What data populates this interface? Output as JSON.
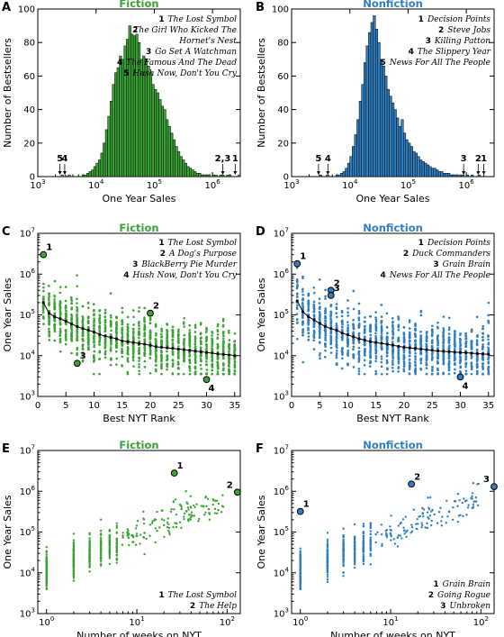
{
  "colors": {
    "fiction": "#3ba336",
    "nonfiction": "#2f7fc1"
  },
  "chart_data": [
    {
      "panel": "A",
      "type": "bar",
      "title": "Fiction",
      "xlabel": "One Year Sales",
      "ylabel": "Number of Bestsellers",
      "xscale": "log",
      "xlim": [
        1000,
        3000000
      ],
      "ylim": [
        0,
        100
      ],
      "xticks": [
        "10^3",
        "10^4",
        "10^5",
        "10^6"
      ],
      "yticks": [
        "0",
        "20",
        "40",
        "60",
        "80",
        "100"
      ],
      "bin_start_log10": 3.4,
      "bin_width_log10": 0.04,
      "values": [
        1,
        0,
        0,
        1,
        0,
        0,
        0,
        0,
        0,
        1,
        1,
        2,
        3,
        4,
        6,
        8,
        10,
        14,
        20,
        28,
        36,
        45,
        55,
        62,
        65,
        72,
        70,
        78,
        82,
        90,
        85,
        84,
        85,
        80,
        70,
        72,
        70,
        66,
        62,
        55,
        52,
        50,
        46,
        42,
        40,
        34,
        30,
        26,
        22,
        18,
        15,
        12,
        10,
        8,
        6,
        5,
        4,
        3,
        2,
        2,
        1,
        1,
        1,
        1,
        0,
        1,
        1,
        0,
        1,
        1,
        0,
        1,
        1,
        0,
        0,
        0,
        1,
        0,
        0,
        0,
        0,
        0
      ],
      "annotations": [
        {
          "label": "5",
          "x": 2400
        },
        {
          "label": "4",
          "x": 2900
        },
        {
          "label": "2,3",
          "x": 1500000
        },
        {
          "label": "1",
          "x": 2450000
        }
      ],
      "legend": [
        {
          "num": "1",
          "text": "The Lost Symbol"
        },
        {
          "num": "2",
          "text": "The Girl Who Kicked The Hornet's Nest"
        },
        {
          "num": "3",
          "text": "Go Set A Watchman"
        },
        {
          "num": "4",
          "text": "The Famous And The Dead"
        },
        {
          "num": "5",
          "text": "Hush Now, Don't You Cry"
        }
      ]
    },
    {
      "panel": "B",
      "type": "bar",
      "title": "Nonfiction",
      "xlabel": "One Year Sales",
      "ylabel": "Number of Bestsellers",
      "xscale": "log",
      "xlim": [
        1000,
        3000000
      ],
      "ylim": [
        0,
        100
      ],
      "xticks": [
        "10^3",
        "10^4",
        "10^5",
        "10^6"
      ],
      "yticks": [
        "0",
        "20",
        "40",
        "60",
        "80",
        "100"
      ],
      "bin_start_log10": 3.48,
      "bin_width_log10": 0.04,
      "values": [
        1,
        0,
        0,
        1,
        0,
        0,
        0,
        1,
        1,
        2,
        3,
        5,
        8,
        12,
        18,
        25,
        34,
        45,
        55,
        68,
        78,
        86,
        92,
        96,
        88,
        80,
        70,
        66,
        60,
        52,
        48,
        44,
        40,
        35,
        30,
        34,
        26,
        22,
        20,
        18,
        15,
        14,
        12,
        10,
        9,
        8,
        7,
        6,
        5,
        5,
        4,
        3,
        3,
        2,
        2,
        2,
        1,
        1,
        1,
        1,
        0,
        1,
        0,
        1,
        0,
        1,
        0,
        0,
        1,
        0,
        0,
        0,
        0
      ],
      "annotations": [
        {
          "label": "5",
          "x": 2900
        },
        {
          "label": "4",
          "x": 4200
        },
        {
          "label": "3",
          "x": 900000
        },
        {
          "label": "2",
          "x": 1600000
        },
        {
          "label": "1",
          "x": 2000000
        }
      ],
      "legend": [
        {
          "num": "1",
          "text": "Decision Points"
        },
        {
          "num": "2",
          "text": "Steve Jobs"
        },
        {
          "num": "3",
          "text": "Killing Patton"
        },
        {
          "num": "4",
          "text": "The Slippery Year"
        },
        {
          "num": "5",
          "text": "News For All The People"
        }
      ]
    },
    {
      "panel": "C",
      "type": "scatter",
      "title": "Fiction",
      "xlabel": "Best NYT Rank",
      "ylabel": "One Year Sales",
      "xlim": [
        0,
        36
      ],
      "ylim": [
        1000,
        10000000
      ],
      "yscale": "log",
      "xticks": [
        "0",
        "5",
        "10",
        "15",
        "20",
        "25",
        "30",
        "35"
      ],
      "yticks": [
        "10^3",
        "10^4",
        "10^5",
        "10^6",
        "10^7"
      ],
      "median_by_rank": [
        200000,
        110000,
        90000,
        80000,
        70000,
        60000,
        52000,
        46000,
        42000,
        38000,
        33000,
        30000,
        28000,
        26000,
        23000,
        22000,
        21000,
        20000,
        19000,
        18000,
        16500,
        16000,
        15500,
        15000,
        14500,
        14000,
        13500,
        13000,
        12500,
        12000,
        11500,
        11000,
        10800,
        10500,
        10000
      ],
      "annotations": [
        {
          "label": "1",
          "x": 1,
          "y": 3000000
        },
        {
          "label": "2",
          "x": 20,
          "y": 110000
        },
        {
          "label": "3",
          "x": 7,
          "y": 6500
        },
        {
          "label": "4",
          "x": 30,
          "y": 2600
        }
      ],
      "legend": [
        {
          "num": "1",
          "text": "The Lost Symbol"
        },
        {
          "num": "2",
          "text": "A Dog's Purpose"
        },
        {
          "num": "3",
          "text": "BlackBerry Pie Murder"
        },
        {
          "num": "4",
          "text": "Hush Now, Don't You Cry"
        }
      ]
    },
    {
      "panel": "D",
      "type": "scatter",
      "title": "Nonfiction",
      "xlabel": "Best NYT Rank",
      "ylabel": "One Year Sales",
      "xlim": [
        0,
        36
      ],
      "ylim": [
        1000,
        10000000
      ],
      "yscale": "log",
      "xticks": [
        "0",
        "5",
        "10",
        "15",
        "20",
        "25",
        "30",
        "35"
      ],
      "yticks": [
        "10^3",
        "10^4",
        "10^5",
        "10^6",
        "10^7"
      ],
      "median_by_rank": [
        220000,
        120000,
        90000,
        75000,
        62000,
        52000,
        46000,
        42000,
        36000,
        32000,
        29000,
        26000,
        24000,
        22000,
        21000,
        20000,
        19000,
        18000,
        17000,
        16000,
        15500,
        15000,
        14500,
        14000,
        13500,
        13000,
        12800,
        12500,
        12200,
        12000,
        11800,
        11500,
        11200,
        11000,
        10800
      ],
      "annotations": [
        {
          "label": "1",
          "x": 1,
          "y": 1800000
        },
        {
          "label": "2",
          "x": 7,
          "y": 400000
        },
        {
          "label": "3",
          "x": 7,
          "y": 300000
        },
        {
          "label": "4",
          "x": 30,
          "y": 3000
        }
      ],
      "legend": [
        {
          "num": "1",
          "text": "Decision Points"
        },
        {
          "num": "2",
          "text": "Duck Commanders"
        },
        {
          "num": "3",
          "text": "Grain Brain"
        },
        {
          "num": "4",
          "text": "News For All The People"
        }
      ]
    },
    {
      "panel": "E",
      "type": "scatter",
      "title": "Fiction",
      "xlabel": "Number of weeks on NYT",
      "ylabel": "One Year Sales",
      "xscale": "log",
      "yscale": "log",
      "xlim": [
        0.8,
        140
      ],
      "ylim": [
        1000,
        10000000
      ],
      "xticks": [
        "10^0",
        "10^1",
        "10^2"
      ],
      "yticks": [
        "10^3",
        "10^4",
        "10^5",
        "10^6",
        "10^7"
      ],
      "annotations": [
        {
          "label": "1",
          "x": 26,
          "y": 2800000
        },
        {
          "label": "2",
          "x": 130,
          "y": 950000
        }
      ],
      "legend": [
        {
          "num": "1",
          "text": "The Lost Symbol"
        },
        {
          "num": "2",
          "text": "The Help"
        }
      ]
    },
    {
      "panel": "F",
      "type": "scatter",
      "title": "Nonfiction",
      "xlabel": "Number of weeks on NYT",
      "ylabel": "One Year Sales",
      "xscale": "log",
      "yscale": "log",
      "xlim": [
        0.8,
        140
      ],
      "ylim": [
        1000,
        10000000
      ],
      "xticks": [
        "10^0",
        "10^1",
        "10^2"
      ],
      "yticks": [
        "10^3",
        "10^4",
        "10^5",
        "10^6",
        "10^7"
      ],
      "annotations": [
        {
          "label": "1",
          "x": 1,
          "y": 320000
        },
        {
          "label": "2",
          "x": 17,
          "y": 1500000
        },
        {
          "label": "3",
          "x": 140,
          "y": 1300000
        }
      ],
      "legend": [
        {
          "num": "1",
          "text": "Grain Brain"
        },
        {
          "num": "2",
          "text": "Going Rogue"
        },
        {
          "num": "3",
          "text": "Unbroken"
        }
      ]
    }
  ]
}
